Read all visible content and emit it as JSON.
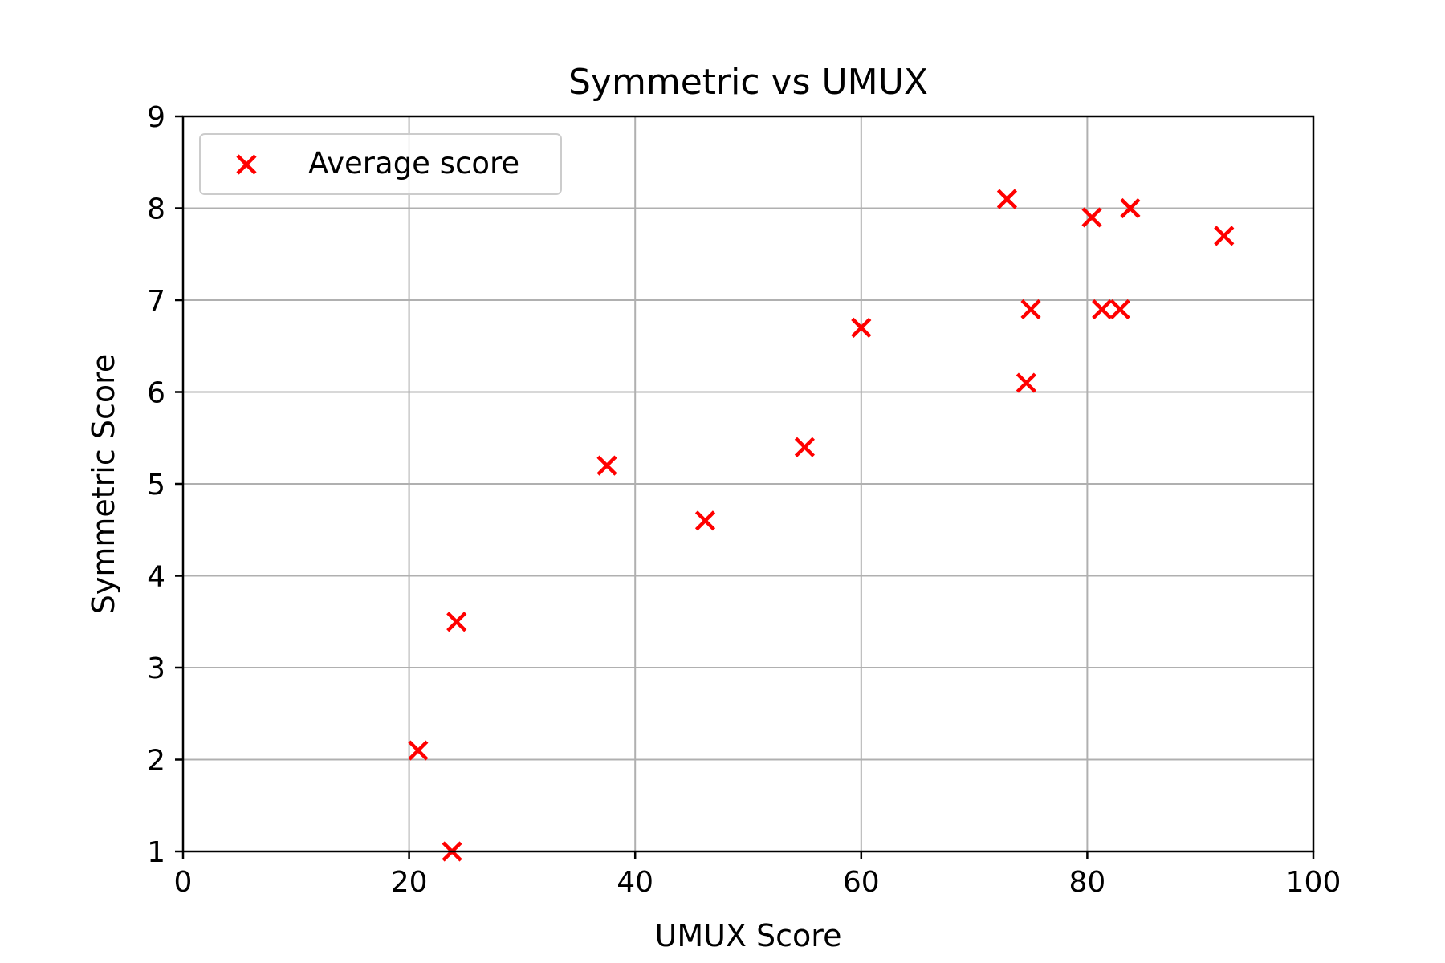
{
  "chart_data": {
    "type": "scatter",
    "title": "Symmetric vs UMUX",
    "xlabel": "UMUX Score",
    "ylabel": "Symmetric Score",
    "xlim": [
      0,
      100
    ],
    "ylim": [
      1,
      9
    ],
    "xticks": [
      0,
      20,
      40,
      60,
      80,
      100
    ],
    "yticks": [
      1,
      2,
      3,
      4,
      5,
      6,
      7,
      8,
      9
    ],
    "grid": true,
    "legend_position": "top-left",
    "marker": "x",
    "series": [
      {
        "name": "Average score",
        "color": "#ff0000",
        "points": [
          {
            "x": 20.8,
            "y": 2.1
          },
          {
            "x": 23.8,
            "y": 1.0
          },
          {
            "x": 24.2,
            "y": 3.5
          },
          {
            "x": 37.5,
            "y": 5.2
          },
          {
            "x": 46.2,
            "y": 4.6
          },
          {
            "x": 55.0,
            "y": 5.4
          },
          {
            "x": 60.0,
            "y": 6.7
          },
          {
            "x": 72.9,
            "y": 8.1
          },
          {
            "x": 74.6,
            "y": 6.1
          },
          {
            "x": 75.0,
            "y": 6.9
          },
          {
            "x": 80.4,
            "y": 7.9
          },
          {
            "x": 81.3,
            "y": 6.9
          },
          {
            "x": 82.9,
            "y": 6.9
          },
          {
            "x": 83.8,
            "y": 8.0
          },
          {
            "x": 92.1,
            "y": 7.7
          }
        ]
      }
    ]
  }
}
